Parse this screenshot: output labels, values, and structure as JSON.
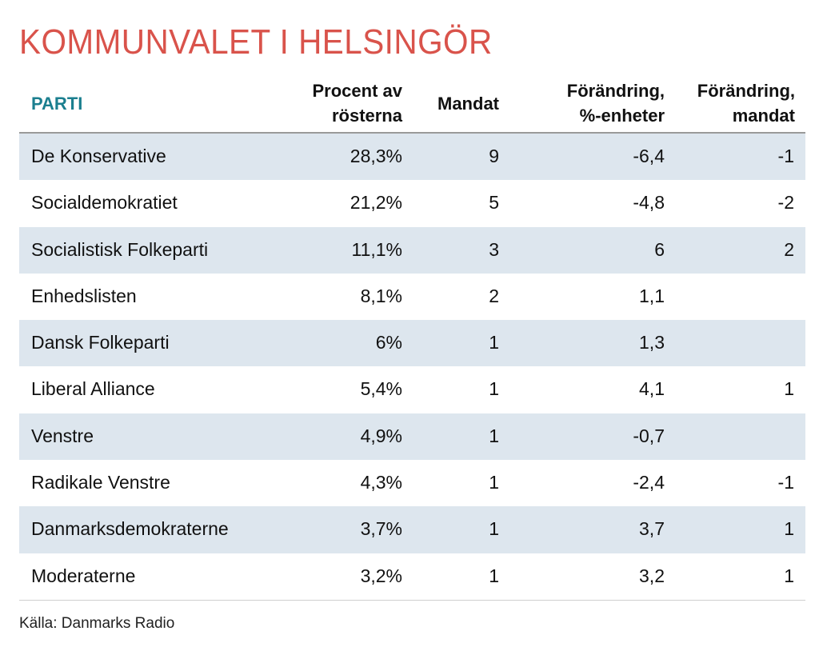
{
  "title": "KOMMUNVALET I HELSINGÖR",
  "source": "Källa: Danmarks Radio",
  "colors": {
    "title": "#d9534b",
    "header_accent": "#1b7f8f",
    "row_alt": "#dde6ee"
  },
  "chart_data": {
    "type": "table",
    "title": "KOMMUNVALET I HELSINGÖR",
    "columns": [
      "PARTI",
      "Procent av\nrösterna",
      "Mandat",
      "Förändring,\n%-enheter",
      "Förändring,\nmandat"
    ],
    "rows": [
      [
        "De Konservative",
        "28,3%",
        "9",
        "-6,4",
        "-1"
      ],
      [
        "Socialdemokratiet",
        "21,2%",
        "5",
        "-4,8",
        "-2"
      ],
      [
        "Socialistisk Folkeparti",
        "11,1%",
        "3",
        "6",
        "2"
      ],
      [
        "Enhedslisten",
        "8,1%",
        "2",
        "1,1",
        ""
      ],
      [
        "Dansk Folkeparti",
        "6%",
        "1",
        "1,3",
        ""
      ],
      [
        "Liberal Alliance",
        "5,4%",
        "1",
        "4,1",
        "1"
      ],
      [
        "Venstre",
        "4,9%",
        "1",
        "-0,7",
        ""
      ],
      [
        "Radikale Venstre",
        "4,3%",
        "1",
        "-2,4",
        "-1"
      ],
      [
        "Danmarksdemokraterne",
        "3,7%",
        "1",
        "3,7",
        "1"
      ],
      [
        "Moderaterne",
        "3,2%",
        "1",
        "3,2",
        "1"
      ]
    ],
    "source": "Källa: Danmarks Radio"
  }
}
